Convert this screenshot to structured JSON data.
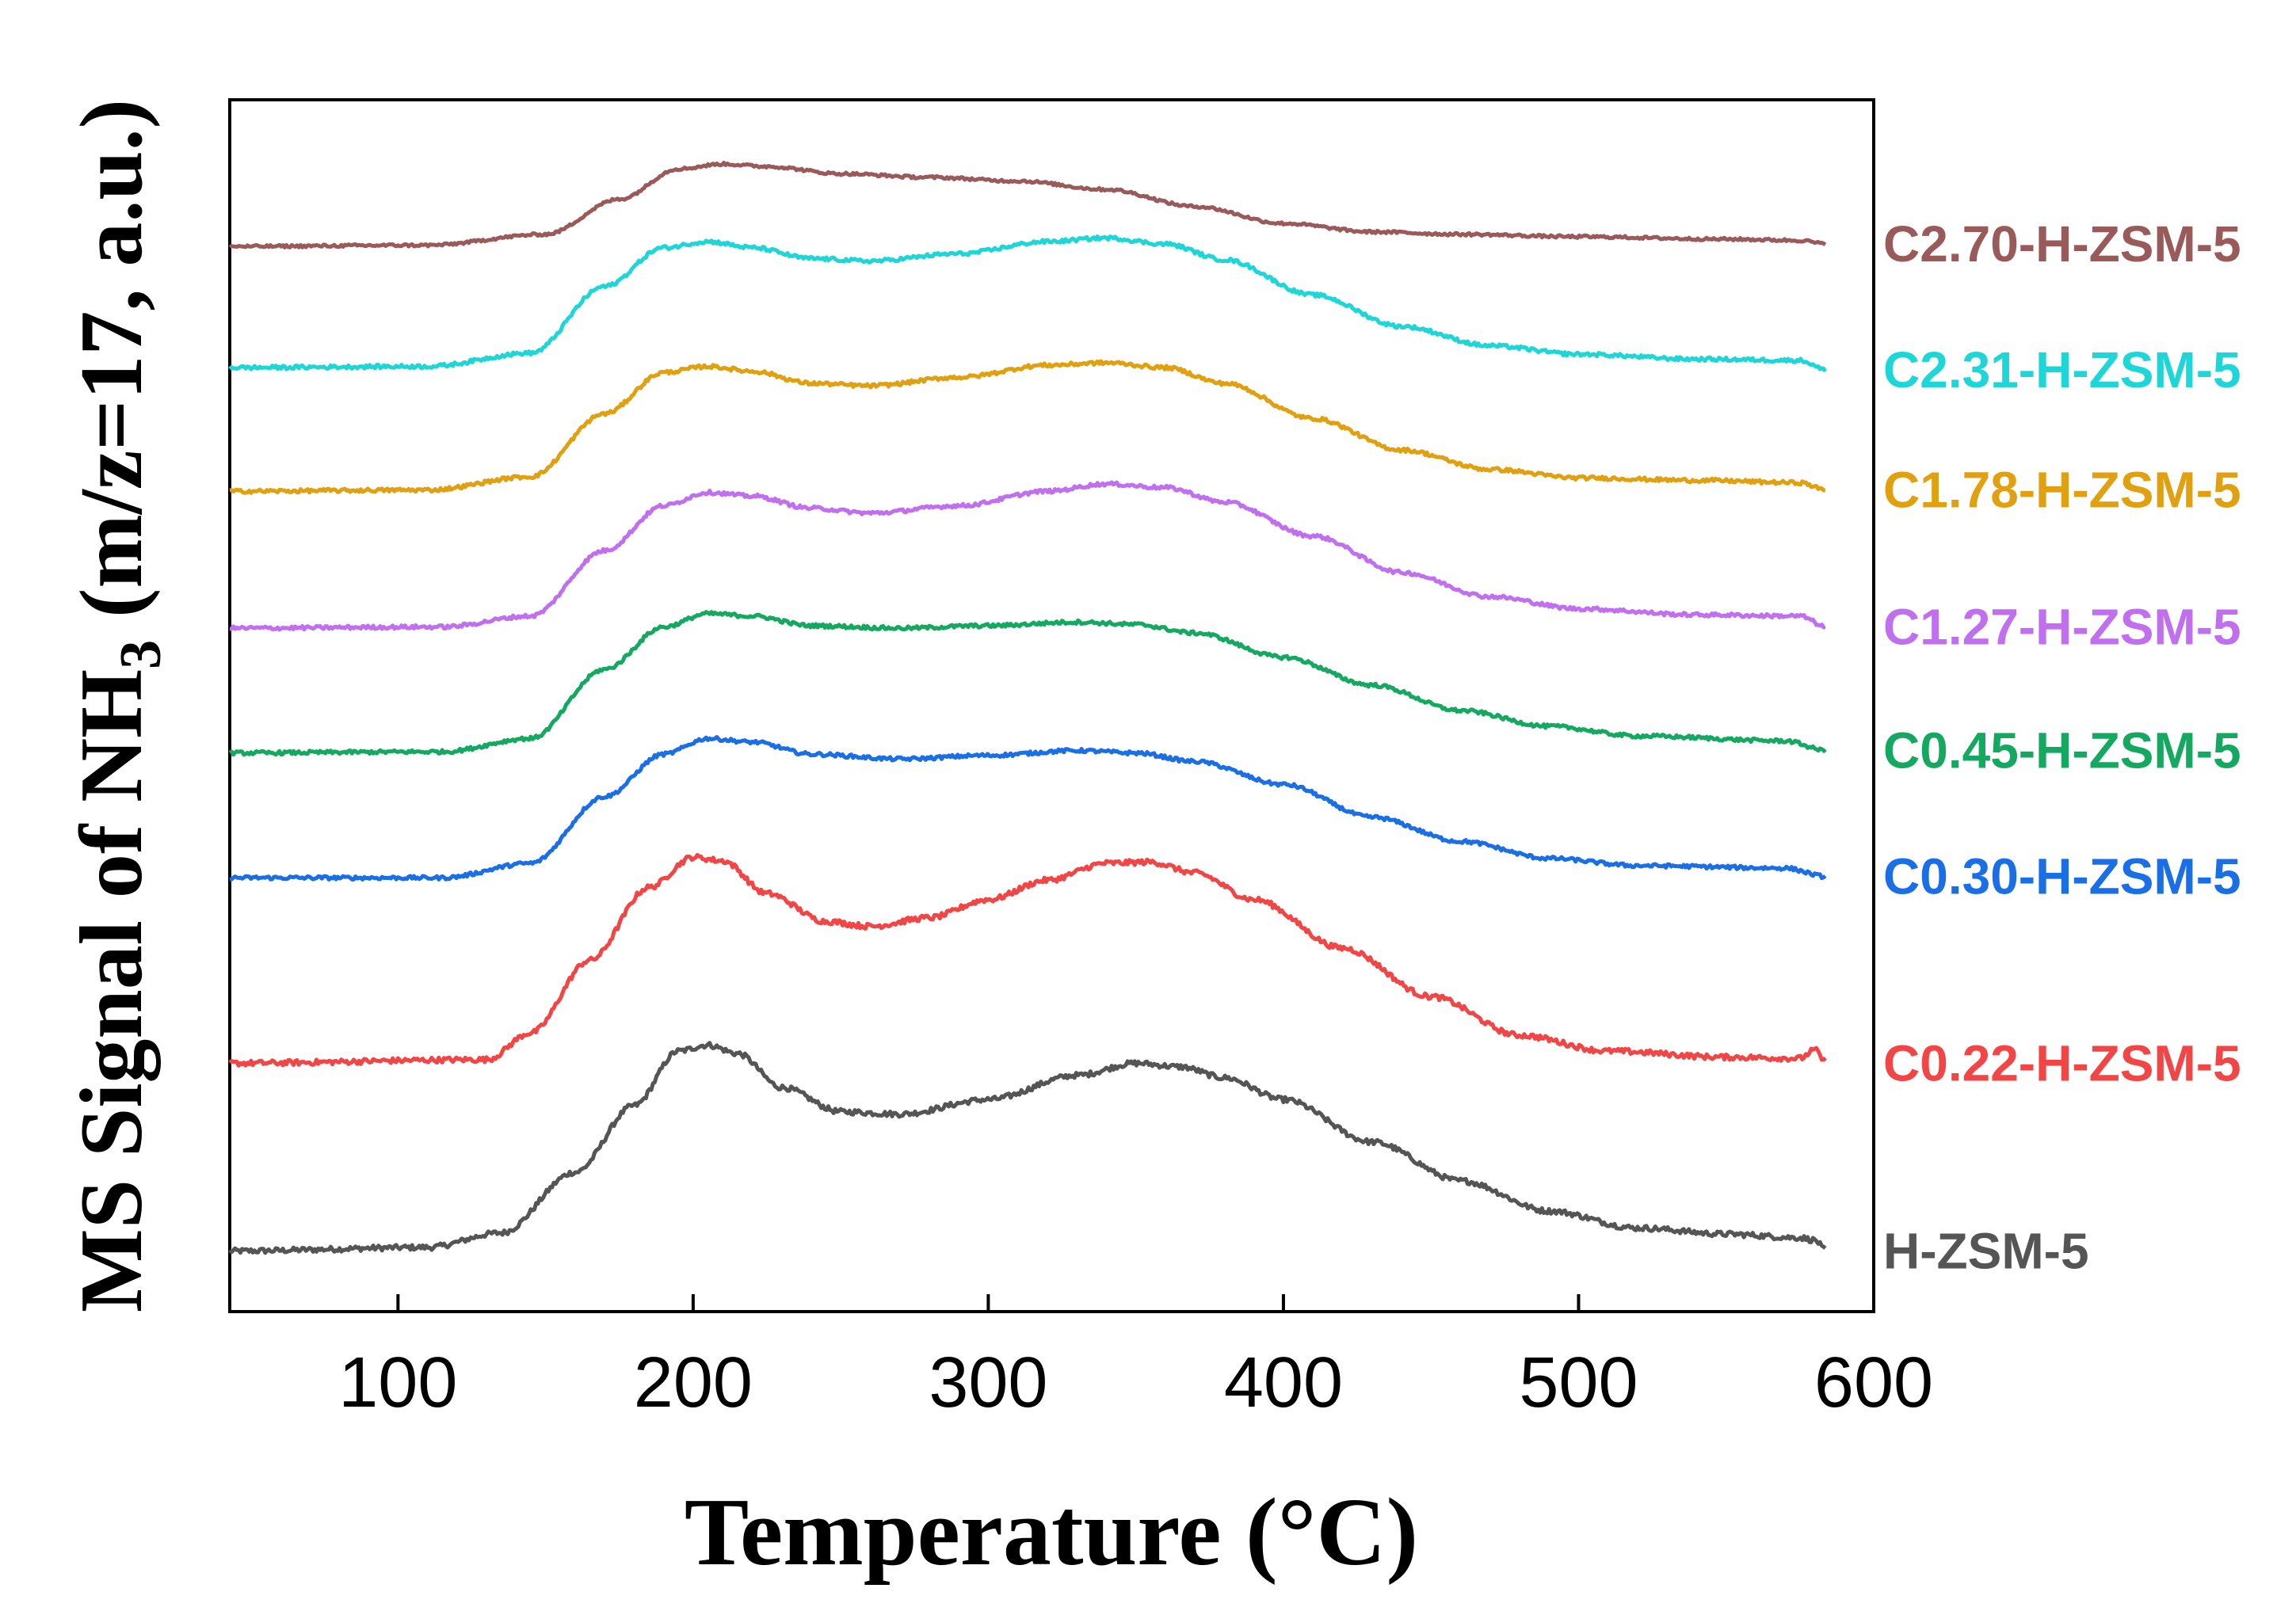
{
  "chart_data": {
    "type": "line",
    "title": "",
    "xlabel": "Temperature (°C)",
    "ylabel_main": "MS Signal of NH",
    "ylabel_sub": "3",
    "ylabel_tail": " (m/z=17, a.u.)",
    "xlim": [
      43,
      600
    ],
    "ylim": [
      0,
      100
    ],
    "x_ticks": [
      100,
      200,
      300,
      400,
      500,
      600
    ],
    "x_tick_labels": [
      "100",
      "200",
      "300",
      "400",
      "500",
      "600"
    ],
    "grid": false,
    "legend": "inline labels at right end of each curve",
    "series": [
      {
        "name": "H-ZSM-5",
        "color": "#555555",
        "noise": 0.45,
        "points": [
          [
            43,
            5
          ],
          [
            110,
            5.3
          ],
          [
            135,
            6.5
          ],
          [
            160,
            11.5
          ],
          [
            180,
            17
          ],
          [
            195,
            21.5
          ],
          [
            205,
            22
          ],
          [
            215,
            21.3
          ],
          [
            230,
            18.5
          ],
          [
            250,
            16.5
          ],
          [
            270,
            16.3
          ],
          [
            300,
            17.5
          ],
          [
            330,
            19.5
          ],
          [
            350,
            20.5
          ],
          [
            365,
            20.2
          ],
          [
            380,
            19.3
          ],
          [
            400,
            17.5
          ],
          [
            430,
            14
          ],
          [
            460,
            10.8
          ],
          [
            490,
            8.3
          ],
          [
            520,
            6.9
          ],
          [
            550,
            6.4
          ],
          [
            575,
            6.1
          ],
          [
            580,
            5.9
          ],
          [
            584,
            5
          ]
        ]
      },
      {
        "name": "C0.22-H-ZSM-5",
        "color": "#f24545",
        "noise": 0.45,
        "points": [
          [
            43,
            20.5
          ],
          [
            130,
            20.8
          ],
          [
            145,
            23
          ],
          [
            165,
            29
          ],
          [
            185,
            35
          ],
          [
            200,
            37.5
          ],
          [
            210,
            37.2
          ],
          [
            225,
            34.5
          ],
          [
            245,
            32.2
          ],
          [
            260,
            31.8
          ],
          [
            280,
            32.5
          ],
          [
            300,
            34
          ],
          [
            320,
            35.6
          ],
          [
            340,
            37
          ],
          [
            355,
            37.1
          ],
          [
            370,
            36.2
          ],
          [
            390,
            34
          ],
          [
            420,
            30
          ],
          [
            450,
            26
          ],
          [
            480,
            22.8
          ],
          [
            510,
            21.5
          ],
          [
            550,
            21
          ],
          [
            575,
            20.9
          ],
          [
            580,
            21.6
          ],
          [
            584,
            20.5
          ]
        ]
      },
      {
        "name": "C0.30-H-ZSM-5",
        "color": "#1a6ee6",
        "noise": 0.3,
        "points": [
          [
            43,
            35.8
          ],
          [
            115,
            35.8
          ],
          [
            145,
            37
          ],
          [
            170,
            42.5
          ],
          [
            190,
            46
          ],
          [
            205,
            47.3
          ],
          [
            220,
            47
          ],
          [
            240,
            46
          ],
          [
            270,
            45.6
          ],
          [
            300,
            45.9
          ],
          [
            330,
            46.3
          ],
          [
            350,
            46.1
          ],
          [
            370,
            45.4
          ],
          [
            400,
            43.5
          ],
          [
            430,
            40.8
          ],
          [
            460,
            38.8
          ],
          [
            490,
            37.4
          ],
          [
            520,
            36.8
          ],
          [
            570,
            36.6
          ],
          [
            584,
            35.9
          ]
        ]
      },
      {
        "name": "C0.45-H-ZSM-5",
        "color": "#15a860",
        "noise": 0.3,
        "points": [
          [
            43,
            46.1
          ],
          [
            115,
            46.2
          ],
          [
            145,
            47.3
          ],
          [
            170,
            53
          ],
          [
            190,
            56.5
          ],
          [
            205,
            57.6
          ],
          [
            220,
            57.4
          ],
          [
            240,
            56.6
          ],
          [
            270,
            56.4
          ],
          [
            300,
            56.6
          ],
          [
            330,
            56.9
          ],
          [
            350,
            56.7
          ],
          [
            370,
            56
          ],
          [
            400,
            54
          ],
          [
            430,
            51.7
          ],
          [
            460,
            49.6
          ],
          [
            490,
            48.3
          ],
          [
            520,
            47.5
          ],
          [
            570,
            47.1
          ],
          [
            584,
            46.3
          ]
        ]
      },
      {
        "name": "C1.27-H-ZSM-5",
        "color": "#c070ee",
        "noise": 0.3,
        "points": [
          [
            43,
            56.4
          ],
          [
            115,
            56.5
          ],
          [
            145,
            57.4
          ],
          [
            170,
            62.8
          ],
          [
            190,
            66.5
          ],
          [
            205,
            67.6
          ],
          [
            220,
            67.3
          ],
          [
            240,
            66.3
          ],
          [
            260,
            65.9
          ],
          [
            290,
            66.5
          ],
          [
            320,
            67.7
          ],
          [
            340,
            68.3
          ],
          [
            360,
            68
          ],
          [
            380,
            66.8
          ],
          [
            410,
            64
          ],
          [
            440,
            61
          ],
          [
            470,
            59
          ],
          [
            500,
            58
          ],
          [
            540,
            57.5
          ],
          [
            575,
            57.4
          ],
          [
            584,
            56.5
          ]
        ]
      },
      {
        "name": "C1.78-H-ZSM-5",
        "color": "#e0a010",
        "noise": 0.3,
        "points": [
          [
            43,
            67.7
          ],
          [
            110,
            67.8
          ],
          [
            145,
            68.9
          ],
          [
            170,
            74.1
          ],
          [
            190,
            77.5
          ],
          [
            205,
            78
          ],
          [
            220,
            77.6
          ],
          [
            240,
            76.6
          ],
          [
            260,
            76.4
          ],
          [
            290,
            77.1
          ],
          [
            320,
            78.1
          ],
          [
            340,
            78.3
          ],
          [
            360,
            77.9
          ],
          [
            380,
            76.6
          ],
          [
            410,
            73.7
          ],
          [
            440,
            71.1
          ],
          [
            470,
            69.5
          ],
          [
            500,
            68.8
          ],
          [
            540,
            68.6
          ],
          [
            575,
            68.4
          ],
          [
            584,
            67.8
          ]
        ]
      },
      {
        "name": "C2.31-H-ZSM-5",
        "color": "#1ed6d8",
        "noise": 0.3,
        "points": [
          [
            43,
            77.9
          ],
          [
            110,
            78
          ],
          [
            145,
            79.1
          ],
          [
            170,
            84.6
          ],
          [
            190,
            87.8
          ],
          [
            205,
            88.3
          ],
          [
            220,
            87.8
          ],
          [
            240,
            86.9
          ],
          [
            260,
            86.7
          ],
          [
            290,
            87.3
          ],
          [
            320,
            88.3
          ],
          [
            340,
            88.6
          ],
          [
            360,
            88.1
          ],
          [
            380,
            86.8
          ],
          [
            410,
            83.9
          ],
          [
            440,
            81.3
          ],
          [
            470,
            79.7
          ],
          [
            500,
            79
          ],
          [
            540,
            78.6
          ],
          [
            575,
            78.5
          ],
          [
            584,
            77.7
          ]
        ]
      },
      {
        "name": "C2.70-H-ZSM-5",
        "color": "#9a5a5a",
        "noise": 0.22,
        "points": [
          [
            43,
            87.9
          ],
          [
            110,
            88
          ],
          [
            150,
            88.9
          ],
          [
            175,
            91.8
          ],
          [
            195,
            94.3
          ],
          [
            210,
            94.7
          ],
          [
            225,
            94.5
          ],
          [
            250,
            93.9
          ],
          [
            280,
            93.6
          ],
          [
            310,
            93.3
          ],
          [
            340,
            92.6
          ],
          [
            370,
            91.2
          ],
          [
            400,
            89.8
          ],
          [
            430,
            89.1
          ],
          [
            460,
            88.9
          ],
          [
            500,
            88.7
          ],
          [
            550,
            88.5
          ],
          [
            575,
            88.4
          ],
          [
            584,
            88.1
          ]
        ]
      }
    ]
  }
}
